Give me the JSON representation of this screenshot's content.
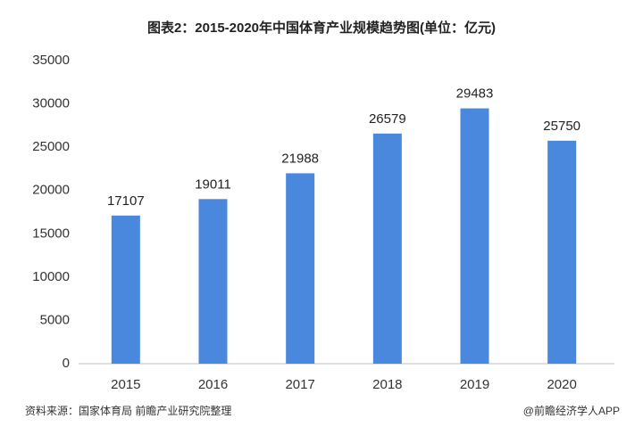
{
  "chart_data": {
    "type": "bar",
    "title": "图表2：2015-2020年中国体育产业规模趋势图(单位：亿元)",
    "categories": [
      "2015",
      "2016",
      "2017",
      "2018",
      "2019",
      "2020"
    ],
    "values": [
      17107,
      19011,
      21988,
      26579,
      29483,
      25750
    ],
    "color": "#4a88dd",
    "ylim": [
      0,
      35000
    ],
    "yticks": [
      0,
      5000,
      10000,
      15000,
      20000,
      25000,
      30000,
      35000
    ],
    "grid": false,
    "source": "资料来源：国家体育局 前瞻产业研究院整理",
    "credit": "@前瞻经济学人APP"
  }
}
